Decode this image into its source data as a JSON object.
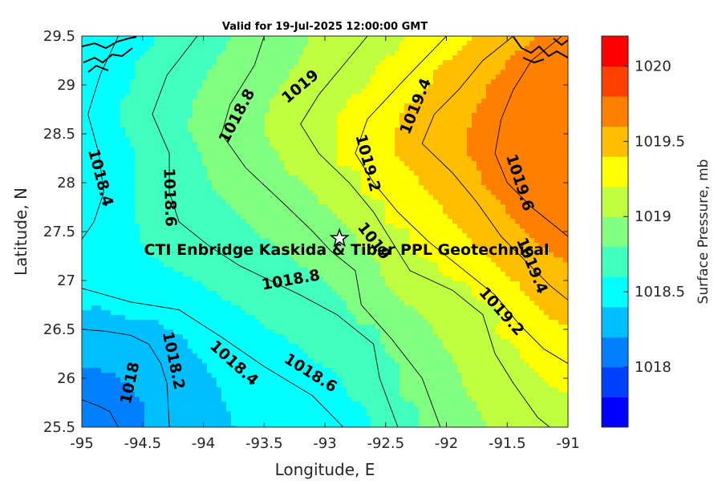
{
  "chart_data": {
    "type": "contour",
    "title": "Valid for 19-Jul-2025 12:00:00 GMT",
    "xlabel": "Longitude, E",
    "ylabel": "Latitude, N",
    "xlim": [
      -95,
      -91
    ],
    "ylim": [
      25.5,
      29.5
    ],
    "xticks": [
      "-95",
      "-94.5",
      "-94",
      "-93.5",
      "-93",
      "-92.5",
      "-92",
      "-91.5",
      "-91"
    ],
    "xtick_values": [
      -95,
      -94.5,
      -94,
      -93.5,
      -93,
      -92.5,
      -92,
      -91.5,
      -91
    ],
    "yticks": [
      "29.5",
      "29",
      "28.5",
      "28",
      "27.5",
      "27",
      "26.5",
      "26",
      "25.5"
    ],
    "ytick_values": [
      29.5,
      29,
      28.5,
      28,
      27.5,
      27,
      26.5,
      26,
      25.5
    ],
    "colorbar": {
      "label": "Surface Pressure, mb",
      "range": [
        1017.6,
        1020
      ],
      "ticks": [
        "1018",
        "1018.5",
        "1019",
        "1019.5",
        "1020"
      ],
      "tick_values": [
        1018,
        1018.5,
        1019,
        1019.5,
        1020
      ],
      "bands": [
        {
          "from": 1017.6,
          "to": 1017.8,
          "color": "#0000ff"
        },
        {
          "from": 1017.8,
          "to": 1018.0,
          "color": "#0040ff"
        },
        {
          "from": 1018.0,
          "to": 1018.2,
          "color": "#0080ff"
        },
        {
          "from": 1018.2,
          "to": 1018.4,
          "color": "#00bfff"
        },
        {
          "from": 1018.4,
          "to": 1018.6,
          "color": "#00ffff"
        },
        {
          "from": 1018.6,
          "to": 1018.8,
          "color": "#40ffbf"
        },
        {
          "from": 1018.8,
          "to": 1019.0,
          "color": "#80ff80"
        },
        {
          "from": 1019.0,
          "to": 1019.2,
          "color": "#bfff40"
        },
        {
          "from": 1019.2,
          "to": 1019.4,
          "color": "#ffff00"
        },
        {
          "from": 1019.4,
          "to": 1019.6,
          "color": "#ffbf00"
        },
        {
          "from": 1019.6,
          "to": 1019.8,
          "color": "#ff8000"
        },
        {
          "from": 1019.8,
          "to": 1020.0,
          "color": "#ff4000"
        },
        {
          "from": 1020.0,
          "to": 1020.2,
          "color": "#ff0000"
        }
      ]
    },
    "contour_lines": [
      {
        "level": 1018.0,
        "points": [
          [
            -95.0,
            25.78
          ],
          [
            -94.87,
            25.72
          ],
          [
            -94.77,
            25.66
          ],
          [
            -94.7,
            25.5
          ]
        ]
      },
      {
        "level": 1018.2,
        "points": [
          [
            -95.0,
            26.5
          ],
          [
            -94.8,
            26.48
          ],
          [
            -94.6,
            26.44
          ],
          [
            -94.45,
            26.35
          ],
          [
            -94.35,
            26.15
          ],
          [
            -94.3,
            25.95
          ],
          [
            -94.28,
            25.5
          ]
        ]
      },
      {
        "level": 1018.4,
        "points": [
          [
            -94.7,
            29.5
          ],
          [
            -94.85,
            29.1
          ],
          [
            -94.95,
            28.7
          ],
          [
            -94.86,
            28.3
          ],
          [
            -94.82,
            27.9
          ],
          [
            -94.9,
            27.6
          ],
          [
            -95.0,
            27.42
          ]
        ]
      },
      {
        "level": 1018.4,
        "points": [
          [
            -95.0,
            26.92
          ],
          [
            -94.6,
            26.78
          ],
          [
            -94.2,
            26.7
          ],
          [
            -93.85,
            26.42
          ],
          [
            -93.5,
            26.12
          ],
          [
            -93.1,
            25.82
          ],
          [
            -92.85,
            25.5
          ]
        ]
      },
      {
        "level": 1018.6,
        "points": [
          [
            -94.05,
            29.5
          ],
          [
            -94.3,
            29.1
          ],
          [
            -94.42,
            28.7
          ],
          [
            -94.28,
            28.3
          ],
          [
            -94.28,
            27.9
          ],
          [
            -94.2,
            27.6
          ],
          [
            -93.95,
            27.35
          ],
          [
            -93.7,
            27.15
          ],
          [
            -93.45,
            27.0
          ],
          [
            -93.2,
            26.85
          ],
          [
            -92.9,
            26.65
          ],
          [
            -92.6,
            26.35
          ],
          [
            -92.55,
            26.0
          ],
          [
            -92.4,
            25.5
          ]
        ]
      },
      {
        "level": 1018.8,
        "points": [
          [
            -93.5,
            29.5
          ],
          [
            -93.58,
            29.2
          ],
          [
            -93.78,
            28.8
          ],
          [
            -93.85,
            28.5
          ],
          [
            -93.65,
            28.15
          ],
          [
            -93.35,
            27.8
          ],
          [
            -93.1,
            27.5
          ],
          [
            -92.95,
            27.3
          ],
          [
            -92.75,
            27.1
          ],
          [
            -92.7,
            26.75
          ],
          [
            -92.45,
            26.4
          ],
          [
            -92.2,
            26.0
          ],
          [
            -92.05,
            25.5
          ]
        ]
      },
      {
        "level": 1019.0,
        "points": [
          [
            -92.65,
            29.5
          ],
          [
            -92.85,
            29.2
          ],
          [
            -93.05,
            28.9
          ],
          [
            -93.2,
            28.6
          ],
          [
            -93.05,
            28.3
          ],
          [
            -92.8,
            28.0
          ],
          [
            -92.6,
            27.7
          ],
          [
            -92.45,
            27.4
          ],
          [
            -92.3,
            27.1
          ],
          [
            -91.95,
            26.9
          ],
          [
            -91.7,
            26.65
          ],
          [
            -91.6,
            26.25
          ],
          [
            -91.45,
            25.95
          ],
          [
            -91.25,
            25.6
          ],
          [
            -91.15,
            25.5
          ]
        ]
      },
      {
        "level": 1019.2,
        "points": [
          [
            -92.0,
            29.5
          ],
          [
            -92.35,
            29.05
          ],
          [
            -92.65,
            28.65
          ],
          [
            -92.75,
            28.3
          ],
          [
            -92.6,
            28.0
          ],
          [
            -92.4,
            27.7
          ],
          [
            -92.15,
            27.4
          ],
          [
            -91.85,
            27.1
          ],
          [
            -91.6,
            26.85
          ],
          [
            -91.4,
            26.55
          ],
          [
            -91.2,
            26.3
          ],
          [
            -91.0,
            26.15
          ]
        ]
      },
      {
        "level": 1019.4,
        "points": [
          [
            -91.45,
            29.5
          ],
          [
            -91.7,
            29.25
          ],
          [
            -91.9,
            28.95
          ],
          [
            -92.1,
            28.7
          ],
          [
            -92.2,
            28.4
          ],
          [
            -91.95,
            28.1
          ],
          [
            -91.75,
            27.8
          ],
          [
            -91.55,
            27.45
          ],
          [
            -91.35,
            27.2
          ],
          [
            -91.15,
            26.95
          ],
          [
            -91.0,
            26.8
          ]
        ]
      },
      {
        "level": 1019.6,
        "points": [
          [
            -91.05,
            29.5
          ],
          [
            -91.3,
            29.25
          ],
          [
            -91.45,
            28.95
          ],
          [
            -91.55,
            28.65
          ],
          [
            -91.6,
            28.3
          ],
          [
            -91.5,
            28.0
          ],
          [
            -91.3,
            27.75
          ],
          [
            -91.1,
            27.55
          ],
          [
            -91.0,
            27.45
          ]
        ]
      }
    ],
    "contour_labels": [
      {
        "text": "1018",
        "x": -94.6,
        "y": 25.95,
        "angle": -78
      },
      {
        "text": "1018.2",
        "x": -94.25,
        "y": 26.18,
        "angle": 78
      },
      {
        "text": "1018.4",
        "x": -94.85,
        "y": 28.05,
        "angle": 75
      },
      {
        "text": "1018.4",
        "x": -93.75,
        "y": 26.15,
        "angle": 42
      },
      {
        "text": "1018.6",
        "x": -94.28,
        "y": 27.85,
        "angle": 88
      },
      {
        "text": "1018.6",
        "x": -93.12,
        "y": 26.05,
        "angle": 32
      },
      {
        "text": "1018.8",
        "x": -93.72,
        "y": 28.68,
        "angle": -62
      },
      {
        "text": "1018.8",
        "x": -93.28,
        "y": 27.0,
        "angle": -10
      },
      {
        "text": "1019",
        "x": -93.2,
        "y": 28.98,
        "angle": -40
      },
      {
        "text": "1019",
        "x": -92.6,
        "y": 27.4,
        "angle": 52
      },
      {
        "text": "1019.2",
        "x": -92.65,
        "y": 28.2,
        "angle": 75
      },
      {
        "text": "1019.2",
        "x": -91.55,
        "y": 26.68,
        "angle": 48
      },
      {
        "text": "1019.4",
        "x": -92.25,
        "y": 28.78,
        "angle": -68
      },
      {
        "text": "1019.4",
        "x": -91.3,
        "y": 27.15,
        "angle": 68
      },
      {
        "text": "1019.6",
        "x": -91.4,
        "y": 28.0,
        "angle": 72
      }
    ],
    "marker": {
      "type": "star",
      "x": -92.88,
      "y": 27.43
    },
    "annotation": {
      "text": "CTI Enbridge  Kaskida & Tiber PPL Geotechnical",
      "x": -93.0,
      "y": 27.32
    }
  }
}
